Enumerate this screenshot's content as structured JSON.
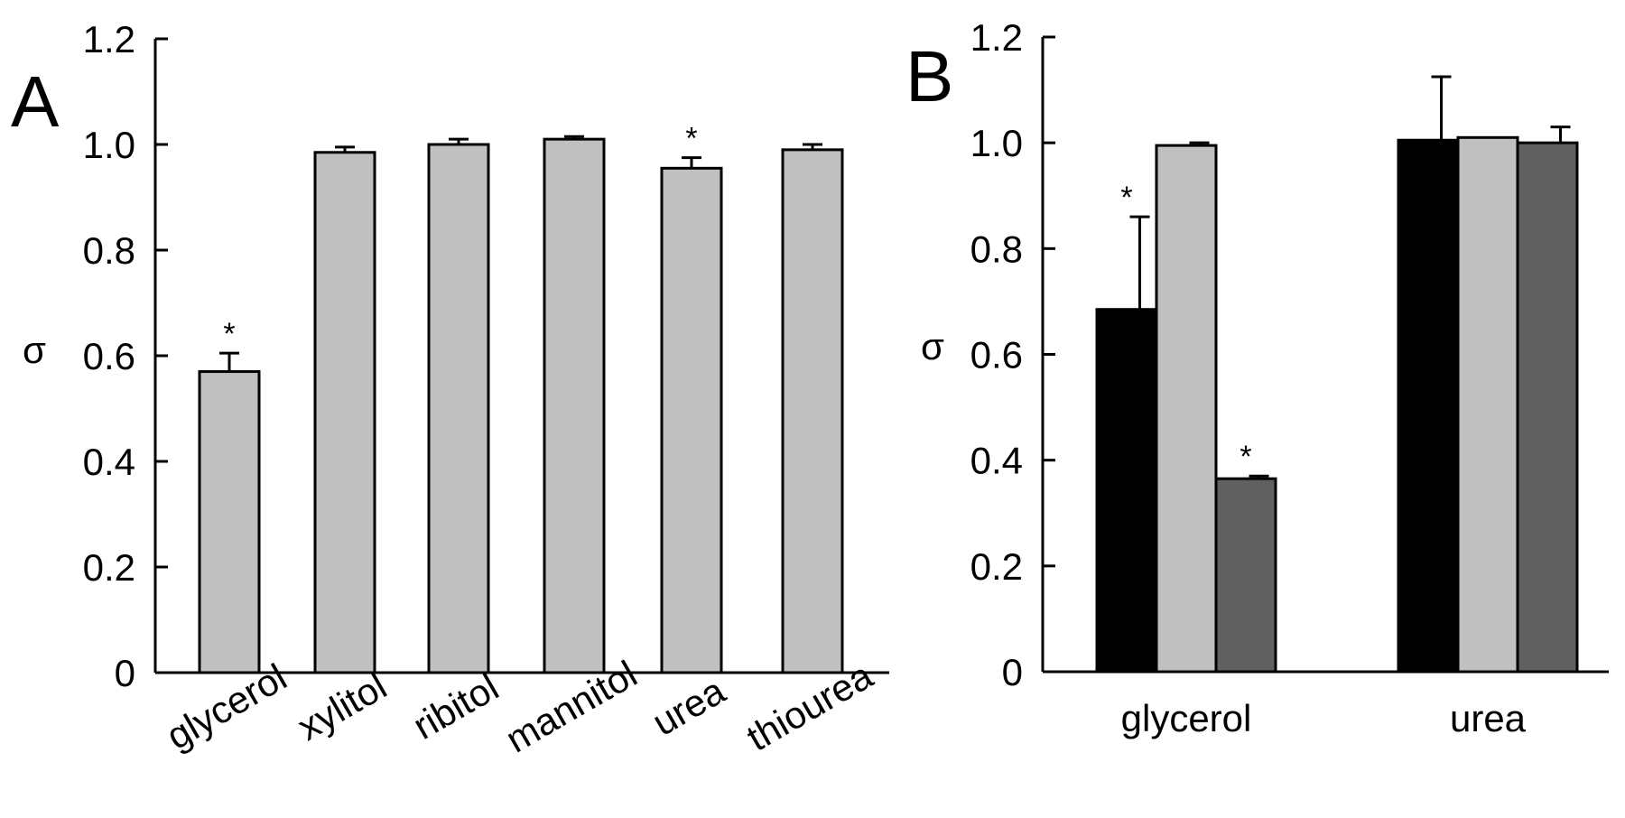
{
  "chart_data": [
    {
      "panel": "A",
      "type": "bar",
      "ylabel": "σ",
      "ylim": [
        0,
        1.2
      ],
      "yticks": [
        "0",
        "0.2",
        "0.4",
        "0.6",
        "0.8",
        "1.0",
        "1.2"
      ],
      "categories": [
        "glycerol",
        "xylitol",
        "ribitol",
        "mannitol",
        "urea",
        "thiourea"
      ],
      "series": [
        {
          "name": "σ",
          "color": "#c0c0c0",
          "values": [
            0.57,
            0.985,
            1.0,
            1.01,
            0.955,
            0.99
          ],
          "errors": [
            0.035,
            0.01,
            0.01,
            0.005,
            0.02,
            0.01
          ],
          "significance": [
            "*",
            "",
            "",
            "",
            "*",
            ""
          ]
        }
      ]
    },
    {
      "panel": "B",
      "type": "bar",
      "ylabel": "σ",
      "ylim": [
        0,
        1.2
      ],
      "yticks": [
        "0",
        "0.2",
        "0.4",
        "0.6",
        "0.8",
        "1.0",
        "1.2"
      ],
      "categories": [
        "glycerol",
        "urea"
      ],
      "series": [
        {
          "name": "black",
          "color": "#000000",
          "values": [
            0.685,
            1.005
          ],
          "errors": [
            0.175,
            0.12
          ],
          "significance": [
            "*",
            ""
          ]
        },
        {
          "name": "light gray",
          "color": "#c0c0c0",
          "values": [
            0.995,
            1.01
          ],
          "errors": [
            0.005,
            0.0
          ],
          "significance": [
            "",
            ""
          ]
        },
        {
          "name": "dark gray",
          "color": "#606060",
          "values": [
            0.365,
            1.0
          ],
          "errors": [
            0.005,
            0.03
          ],
          "significance": [
            "*",
            ""
          ]
        }
      ]
    }
  ]
}
